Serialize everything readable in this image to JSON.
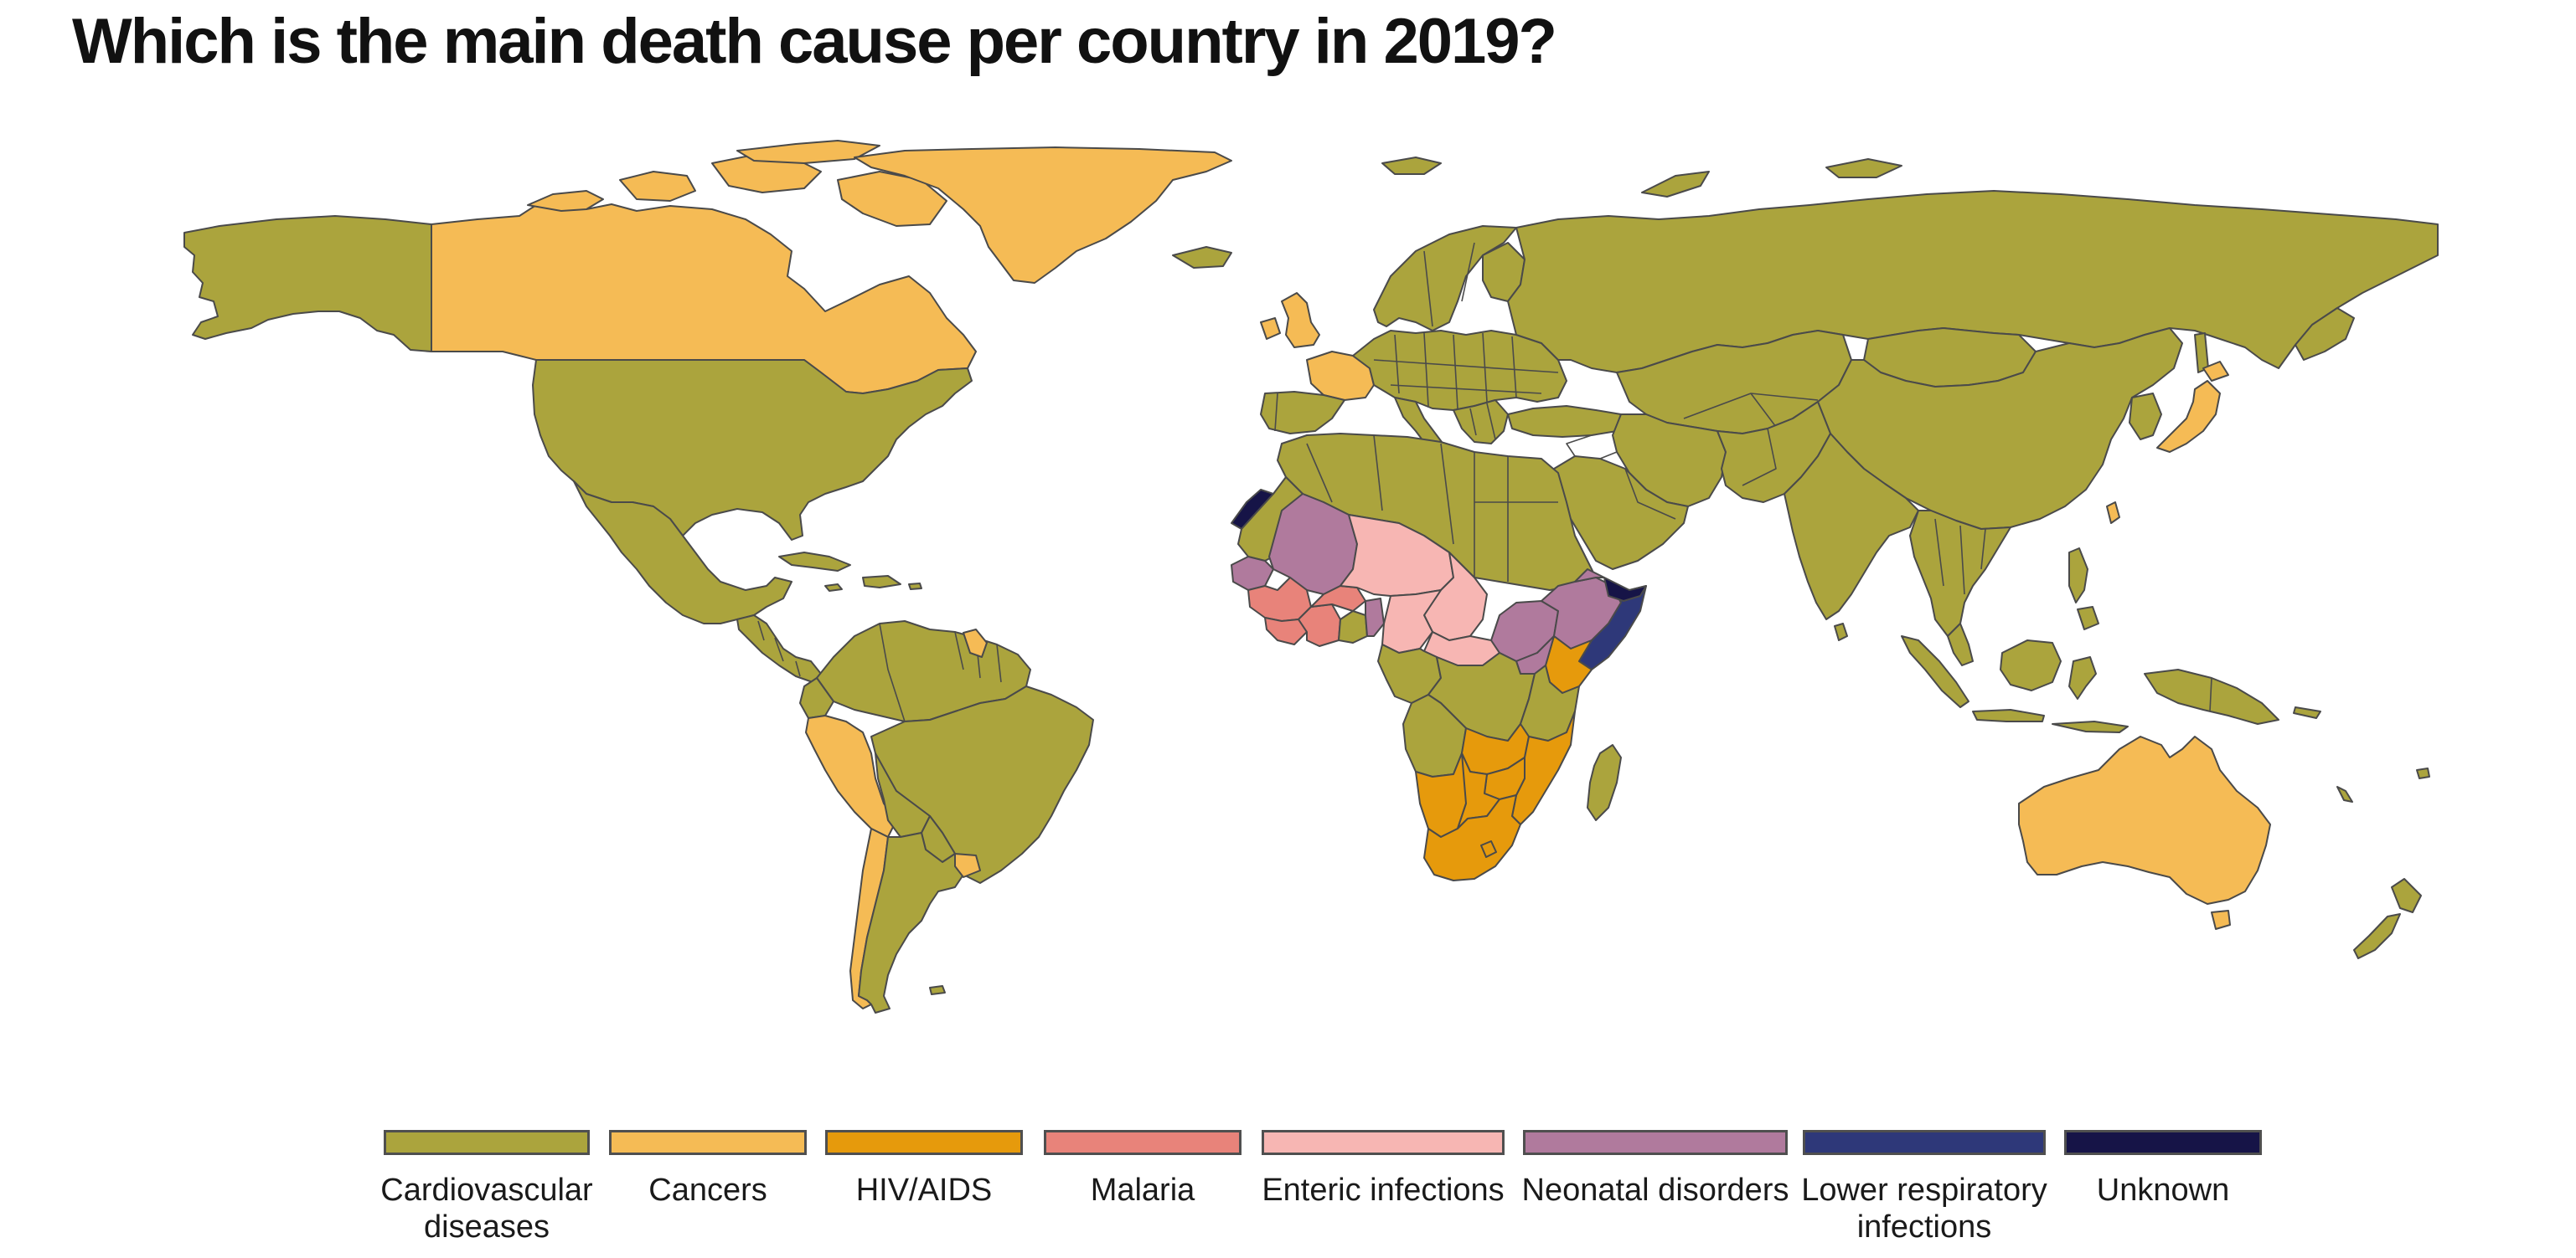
{
  "title": "Which is the main death cause per country in 2019?",
  "colors": {
    "cardio": "#aba43d",
    "cancers": "#f5bb55",
    "hiv": "#e69a0c",
    "malaria": "#e8837a",
    "enteric": "#f7b6b3",
    "neonatal": "#b07a9d",
    "lri": "#2e3879",
    "unknown": "#161447"
  },
  "legend": [
    {
      "key": "cardio",
      "label": "Cardiovascular\ndiseases"
    },
    {
      "key": "cancers",
      "label": "Cancers"
    },
    {
      "key": "hiv",
      "label": "HIV/AIDS"
    },
    {
      "key": "malaria",
      "label": "Malaria"
    },
    {
      "key": "enteric",
      "label": "Enteric infections"
    },
    {
      "key": "neonatal",
      "label": "Neonatal disorders"
    },
    {
      "key": "lri",
      "label": "Lower respiratory\ninfections"
    },
    {
      "key": "unknown",
      "label": "Unknown"
    }
  ]
}
